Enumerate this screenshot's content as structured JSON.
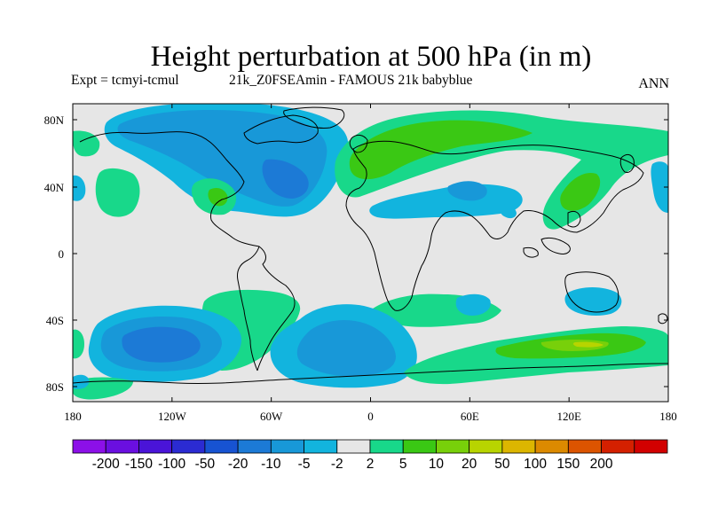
{
  "header": {
    "title": "Height perturbation at 500 hPa (in m)",
    "expt": "Expt = tcmyi-tcmul",
    "run": "21k_Z0FSEAmin - FAMOUS 21k babyblue",
    "season": "ANN"
  },
  "axes": {
    "lon_labels": [
      "180",
      "120W",
      "60W",
      "0",
      "60E",
      "120E",
      "180"
    ],
    "lat_labels": [
      "80N",
      "40N",
      "0",
      "40S",
      "80S"
    ]
  },
  "legend": {
    "labels": [
      "-200",
      "-150",
      "-100",
      "-50",
      "-20",
      "-10",
      "-5",
      "-2",
      "2",
      "5",
      "10",
      "20",
      "50",
      "100",
      "150",
      "200"
    ],
    "colors": [
      "#8c10e8",
      "#6a0fe0",
      "#4a14d8",
      "#2b2bd2",
      "#1753d2",
      "#1c7ad6",
      "#1898d8",
      "#12b4de",
      "#e6e6e6",
      "#18d88a",
      "#3ac814",
      "#78d00a",
      "#b8d400",
      "#dcb600",
      "#dc8a00",
      "#dc5400",
      "#d42000",
      "#d20000"
    ]
  },
  "map_colors": {
    "background": "#e6e6e6",
    "neg_2_5": "#12b4de",
    "neg_5_10": "#1898d8",
    "neg_10_20": "#1c7ad6",
    "pos_2_5": "#18d88a",
    "pos_5_10": "#3ac814",
    "pos_10_20": "#78d00a",
    "pos_20_50": "#b8d400"
  }
}
